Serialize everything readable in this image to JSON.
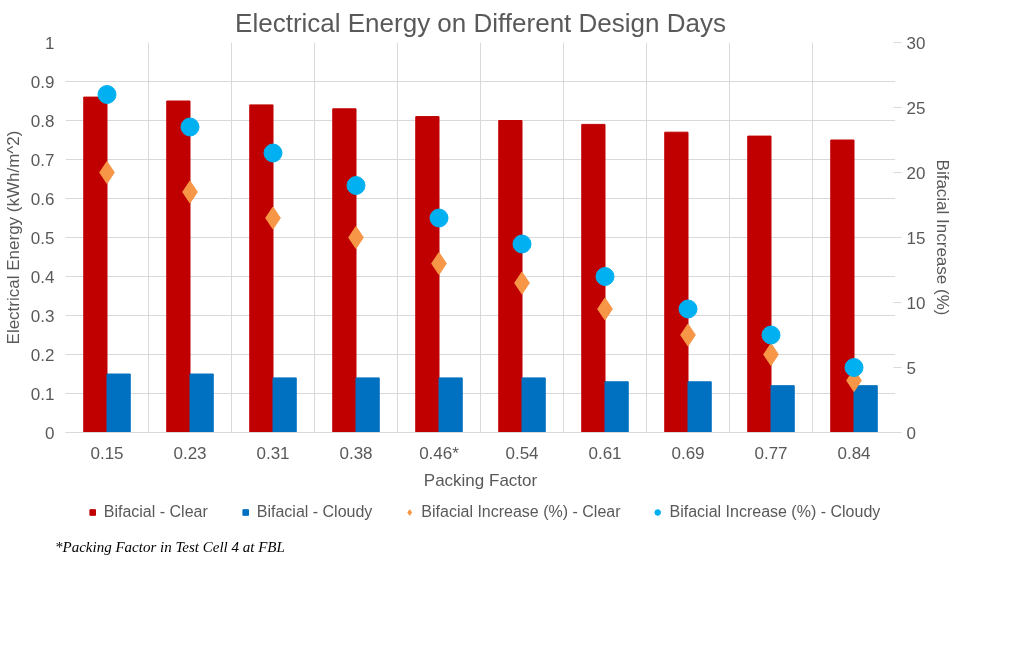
{
  "chart_data": {
    "type": "bar",
    "title": "Electrical Energy on Different Design Days",
    "xlabel": "Packing Factor",
    "ylabel": "Electrical Energy (kWh/m^2)",
    "y2label": "Bifacial Increase (%)",
    "categories": [
      "0.15",
      "0.23",
      "0.31",
      "0.38",
      "0.46*",
      "0.54",
      "0.61",
      "0.69",
      "0.77",
      "0.84"
    ],
    "series": [
      {
        "name": "Bifacial - Clear",
        "color": "#c00000",
        "values": [
          0.86,
          0.85,
          0.84,
          0.83,
          0.81,
          0.8,
          0.79,
          0.77,
          0.76,
          0.75
        ]
      },
      {
        "name": "Bifacial - Cloudy",
        "color": "#0070c0",
        "values": [
          0.15,
          0.15,
          0.14,
          0.14,
          0.14,
          0.14,
          0.13,
          0.13,
          0.12,
          0.12
        ]
      },
      {
        "name": "Bifacial Increase (%) - Clear",
        "color": "#f79646",
        "type": "scatter",
        "axis": "y2",
        "marker": "diamond",
        "values": [
          20,
          18.5,
          16.5,
          15,
          13,
          11.5,
          9.5,
          7.5,
          6,
          4
        ]
      },
      {
        "name": "Bifacial Increase (%) - Cloudy",
        "color": "#00b0f0",
        "type": "scatter",
        "axis": "y2",
        "marker": "circle",
        "values": [
          26,
          23.5,
          21.5,
          19,
          16.5,
          14.5,
          12,
          9.5,
          7.5,
          5
        ]
      }
    ],
    "ylim": [
      0,
      1
    ],
    "yticks": [
      0,
      0.1,
      0.2,
      0.3,
      0.4,
      0.5,
      0.6,
      0.7,
      0.8,
      0.9,
      1
    ],
    "y2lim": [
      0,
      30
    ],
    "y2ticks": [
      0,
      5,
      10,
      15,
      20,
      25,
      30
    ],
    "grid": true,
    "legend": "bottom",
    "annotations": [
      "*Packing Factor in Test Cell 4 at FBL"
    ]
  }
}
